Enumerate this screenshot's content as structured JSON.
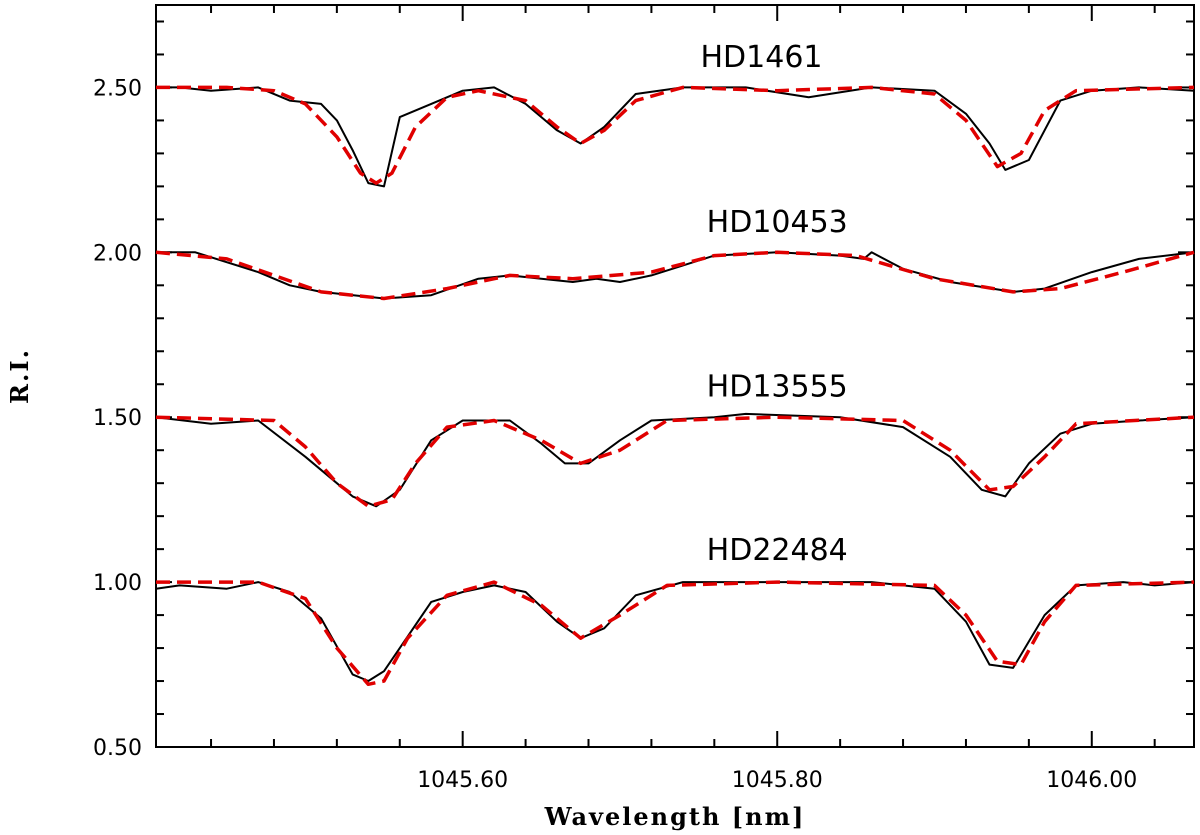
{
  "chart_data": {
    "type": "line",
    "title": "",
    "xlabel": "Wavelength [nm]",
    "ylabel": "R.I.",
    "xlim": [
      1045.405,
      1046.065
    ],
    "ylim": [
      0.5,
      2.75
    ],
    "xticks": [
      {
        "value": 1045.6,
        "label": "1045.60"
      },
      {
        "value": 1045.8,
        "label": "1045.80"
      },
      {
        "value": 1046.0,
        "label": "1046.00"
      }
    ],
    "yticks": [
      {
        "value": 0.5,
        "label": "0.50"
      },
      {
        "value": 1.0,
        "label": "1.00"
      },
      {
        "value": 1.5,
        "label": "1.50"
      },
      {
        "value": 2.0,
        "label": "2.00"
      },
      {
        "value": 2.5,
        "label": "2.50"
      }
    ],
    "grid": false,
    "colors": {
      "observed": "#000000",
      "model": "#e00000"
    },
    "annotations": [
      {
        "text": "HD1461",
        "x": 1045.79,
        "y": 2.55
      },
      {
        "text": "HD10453",
        "x": 1045.8,
        "y": 2.05
      },
      {
        "text": "HD13555",
        "x": 1045.8,
        "y": 1.55
      },
      {
        "text": "HD22484",
        "x": 1045.8,
        "y": 1.055
      }
    ],
    "series": [
      {
        "star": "HD1461",
        "style": "solid",
        "color": "#000000",
        "x": [
          1045.405,
          1045.42,
          1045.44,
          1045.47,
          1045.49,
          1045.51,
          1045.52,
          1045.53,
          1045.54,
          1045.55,
          1045.56,
          1045.58,
          1045.6,
          1045.62,
          1045.64,
          1045.66,
          1045.675,
          1045.69,
          1045.71,
          1045.74,
          1045.78,
          1045.82,
          1045.86,
          1045.9,
          1045.92,
          1045.935,
          1045.945,
          1045.96,
          1045.98,
          1046.0,
          1046.03,
          1046.065
        ],
        "y": [
          2.5,
          2.5,
          2.49,
          2.5,
          2.46,
          2.45,
          2.4,
          2.31,
          2.21,
          2.2,
          2.41,
          2.45,
          2.49,
          2.5,
          2.45,
          2.37,
          2.33,
          2.38,
          2.48,
          2.5,
          2.5,
          2.47,
          2.5,
          2.49,
          2.42,
          2.33,
          2.25,
          2.28,
          2.46,
          2.49,
          2.5,
          2.49
        ]
      },
      {
        "star": "HD1461",
        "style": "dashed",
        "color": "#e00000",
        "x": [
          1045.405,
          1045.45,
          1045.48,
          1045.5,
          1045.52,
          1045.535,
          1045.545,
          1045.555,
          1045.57,
          1045.59,
          1045.61,
          1045.64,
          1045.66,
          1045.675,
          1045.69,
          1045.71,
          1045.74,
          1045.8,
          1045.86,
          1045.9,
          1045.92,
          1045.94,
          1045.955,
          1045.97,
          1045.99,
          1046.065
        ],
        "y": [
          2.5,
          2.5,
          2.49,
          2.45,
          2.35,
          2.24,
          2.21,
          2.24,
          2.38,
          2.47,
          2.49,
          2.46,
          2.38,
          2.33,
          2.37,
          2.46,
          2.5,
          2.49,
          2.5,
          2.48,
          2.4,
          2.26,
          2.3,
          2.43,
          2.49,
          2.5
        ]
      },
      {
        "star": "HD10453",
        "style": "solid",
        "color": "#000000",
        "x": [
          1045.405,
          1045.43,
          1045.47,
          1045.49,
          1045.51,
          1045.55,
          1045.58,
          1045.61,
          1045.63,
          1045.65,
          1045.67,
          1045.685,
          1045.7,
          1045.72,
          1045.76,
          1045.8,
          1045.84,
          1045.855,
          1045.86,
          1045.88,
          1045.91,
          1045.95,
          1045.97,
          1046.0,
          1046.03,
          1046.065
        ],
        "y": [
          2.0,
          2.0,
          1.94,
          1.9,
          1.88,
          1.86,
          1.87,
          1.92,
          1.93,
          1.92,
          1.91,
          1.92,
          1.91,
          1.93,
          1.99,
          2.0,
          1.99,
          1.98,
          2.0,
          1.95,
          1.91,
          1.88,
          1.89,
          1.94,
          1.98,
          2.0
        ]
      },
      {
        "star": "HD10453",
        "style": "dashed",
        "color": "#e00000",
        "x": [
          1045.405,
          1045.45,
          1045.48,
          1045.51,
          1045.55,
          1045.59,
          1045.63,
          1045.67,
          1045.72,
          1045.76,
          1045.8,
          1045.85,
          1045.9,
          1045.95,
          1045.98,
          1046.02,
          1046.065
        ],
        "y": [
          2.0,
          1.98,
          1.93,
          1.88,
          1.86,
          1.89,
          1.93,
          1.92,
          1.94,
          1.99,
          2.0,
          1.99,
          1.92,
          1.88,
          1.89,
          1.94,
          2.0
        ]
      },
      {
        "star": "HD13555",
        "style": "solid",
        "color": "#000000",
        "x": [
          1045.405,
          1045.44,
          1045.47,
          1045.5,
          1045.52,
          1045.53,
          1045.545,
          1045.56,
          1045.58,
          1045.6,
          1045.63,
          1045.65,
          1045.665,
          1045.68,
          1045.7,
          1045.72,
          1045.76,
          1045.78,
          1045.84,
          1045.88,
          1045.91,
          1045.93,
          1045.945,
          1045.96,
          1045.98,
          1046.0,
          1046.03,
          1046.065
        ],
        "y": [
          1.5,
          1.48,
          1.49,
          1.38,
          1.3,
          1.26,
          1.23,
          1.28,
          1.43,
          1.49,
          1.49,
          1.42,
          1.36,
          1.36,
          1.43,
          1.49,
          1.5,
          1.51,
          1.5,
          1.47,
          1.38,
          1.28,
          1.26,
          1.36,
          1.45,
          1.48,
          1.49,
          1.5
        ]
      },
      {
        "star": "HD13555",
        "style": "dashed",
        "color": "#e00000",
        "x": [
          1045.405,
          1045.48,
          1045.5,
          1045.52,
          1045.54,
          1045.555,
          1045.57,
          1045.59,
          1045.62,
          1045.65,
          1045.675,
          1045.7,
          1045.73,
          1045.8,
          1045.88,
          1045.91,
          1045.935,
          1045.95,
          1045.97,
          1045.99,
          1046.065
        ],
        "y": [
          1.5,
          1.49,
          1.41,
          1.3,
          1.23,
          1.25,
          1.36,
          1.47,
          1.49,
          1.43,
          1.36,
          1.4,
          1.49,
          1.5,
          1.49,
          1.4,
          1.28,
          1.29,
          1.38,
          1.48,
          1.5
        ]
      },
      {
        "star": "HD22484",
        "style": "solid",
        "color": "#000000",
        "x": [
          1045.405,
          1045.42,
          1045.45,
          1045.47,
          1045.49,
          1045.51,
          1045.53,
          1045.54,
          1045.55,
          1045.57,
          1045.58,
          1045.6,
          1045.62,
          1045.64,
          1045.66,
          1045.675,
          1045.69,
          1045.71,
          1045.74,
          1045.8,
          1045.86,
          1045.9,
          1045.92,
          1045.935,
          1045.95,
          1045.97,
          1045.99,
          1046.02,
          1046.04,
          1046.065
        ],
        "y": [
          0.98,
          0.99,
          0.98,
          1.0,
          0.97,
          0.89,
          0.72,
          0.7,
          0.73,
          0.87,
          0.94,
          0.97,
          0.99,
          0.97,
          0.88,
          0.83,
          0.86,
          0.96,
          1.0,
          1.0,
          1.0,
          0.98,
          0.88,
          0.75,
          0.74,
          0.9,
          0.99,
          1.0,
          0.99,
          1.0
        ]
      },
      {
        "star": "HD22484",
        "style": "dashed",
        "color": "#e00000",
        "x": [
          1045.405,
          1045.47,
          1045.5,
          1045.52,
          1045.54,
          1045.55,
          1045.565,
          1045.59,
          1045.62,
          1045.65,
          1045.675,
          1045.7,
          1045.73,
          1045.8,
          1045.9,
          1045.92,
          1045.94,
          1045.955,
          1045.97,
          1045.99,
          1046.065
        ],
        "y": [
          1.0,
          1.0,
          0.95,
          0.8,
          0.69,
          0.7,
          0.83,
          0.96,
          1.0,
          0.93,
          0.83,
          0.9,
          0.99,
          1.0,
          0.99,
          0.9,
          0.76,
          0.75,
          0.88,
          0.99,
          1.0
        ]
      }
    ]
  }
}
